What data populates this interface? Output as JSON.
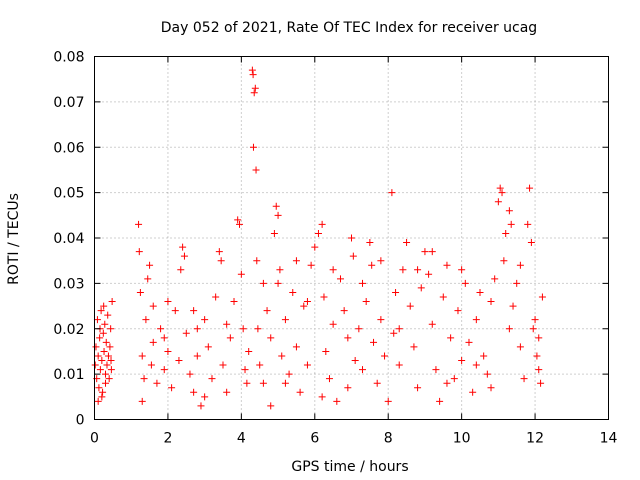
{
  "chart_data": {
    "type": "scatter",
    "title": "Day 052 of 2021, Rate Of TEC Index for receiver ucag",
    "xlabel": "GPS time / hours",
    "ylabel": "ROTI / TECUs",
    "xlim": [
      0,
      14
    ],
    "ylim": [
      0,
      0.08
    ],
    "xticks": [
      0,
      2,
      4,
      6,
      8,
      10,
      12,
      14
    ],
    "xtick_labels": [
      "0",
      "2",
      "4",
      "6",
      "8",
      "10",
      "12",
      "14"
    ],
    "yticks": [
      0,
      0.01,
      0.02,
      0.03,
      0.04,
      0.05,
      0.06,
      0.07,
      0.08
    ],
    "ytick_labels": [
      "0",
      "0.01",
      "0.02",
      "0.03",
      "0.04",
      "0.05",
      "0.06",
      "0.07",
      "0.08"
    ],
    "grid": true,
    "marker": "plus",
    "marker_color": "#ff0000",
    "series": [
      {
        "name": "ROTI",
        "points": [
          [
            0.02,
            0.012
          ],
          [
            0.04,
            0.016
          ],
          [
            0.06,
            0.009
          ],
          [
            0.08,
            0.022
          ],
          [
            0.1,
            0.014
          ],
          [
            0.12,
            0.007
          ],
          [
            0.14,
            0.018
          ],
          [
            0.16,
            0.011
          ],
          [
            0.18,
            0.024
          ],
          [
            0.2,
            0.013
          ],
          [
            0.22,
            0.006
          ],
          [
            0.24,
            0.019
          ],
          [
            0.26,
            0.015
          ],
          [
            0.28,
            0.021
          ],
          [
            0.3,
            0.01
          ],
          [
            0.32,
            0.017
          ],
          [
            0.34,
            0.012
          ],
          [
            0.36,
            0.023
          ],
          [
            0.38,
            0.014
          ],
          [
            0.4,
            0.009
          ],
          [
            0.42,
            0.016
          ],
          [
            0.44,
            0.02
          ],
          [
            0.46,
            0.011
          ],
          [
            0.48,
            0.026
          ],
          [
            0.1,
            0.004
          ],
          [
            0.2,
            0.005
          ],
          [
            0.3,
            0.008
          ],
          [
            0.15,
            0.02
          ],
          [
            0.25,
            0.025
          ],
          [
            0.45,
            0.013
          ],
          [
            1.2,
            0.043
          ],
          [
            1.22,
            0.037
          ],
          [
            1.25,
            0.028
          ],
          [
            1.3,
            0.014
          ],
          [
            1.35,
            0.009
          ],
          [
            1.4,
            0.022
          ],
          [
            1.45,
            0.031
          ],
          [
            1.5,
            0.034
          ],
          [
            1.55,
            0.012
          ],
          [
            1.6,
            0.017
          ],
          [
            1.7,
            0.008
          ],
          [
            1.8,
            0.02
          ],
          [
            1.9,
            0.011
          ],
          [
            2.0,
            0.015
          ],
          [
            2.1,
            0.007
          ],
          [
            2.2,
            0.024
          ],
          [
            2.3,
            0.013
          ],
          [
            2.35,
            0.033
          ],
          [
            2.4,
            0.038
          ],
          [
            2.45,
            0.036
          ],
          [
            2.5,
            0.019
          ],
          [
            2.6,
            0.01
          ],
          [
            2.7,
            0.006
          ],
          [
            2.8,
            0.014
          ],
          [
            2.9,
            0.003
          ],
          [
            3.0,
            0.022
          ],
          [
            3.1,
            0.016
          ],
          [
            3.2,
            0.009
          ],
          [
            3.3,
            0.027
          ],
          [
            3.4,
            0.037
          ],
          [
            3.45,
            0.035
          ],
          [
            3.5,
            0.012
          ],
          [
            3.6,
            0.021
          ],
          [
            3.7,
            0.018
          ],
          [
            3.8,
            0.026
          ],
          [
            3.9,
            0.044
          ],
          [
            3.95,
            0.043
          ],
          [
            4.0,
            0.032
          ],
          [
            4.05,
            0.02
          ],
          [
            4.1,
            0.011
          ],
          [
            4.15,
            0.008
          ],
          [
            4.2,
            0.015
          ],
          [
            1.3,
            0.004
          ],
          [
            1.6,
            0.025
          ],
          [
            2.0,
            0.026
          ],
          [
            2.7,
            0.024
          ],
          [
            3.0,
            0.005
          ],
          [
            3.6,
            0.006
          ],
          [
            1.9,
            0.018
          ],
          [
            2.8,
            0.02
          ],
          [
            4.3,
            0.077
          ],
          [
            4.32,
            0.076
          ],
          [
            4.35,
            0.072
          ],
          [
            4.38,
            0.073
          ],
          [
            4.33,
            0.06
          ],
          [
            4.4,
            0.055
          ],
          [
            4.42,
            0.035
          ],
          [
            4.45,
            0.02
          ],
          [
            4.5,
            0.012
          ],
          [
            4.6,
            0.008
          ],
          [
            4.7,
            0.024
          ],
          [
            4.8,
            0.018
          ],
          [
            4.9,
            0.041
          ],
          [
            4.95,
            0.047
          ],
          [
            5.0,
            0.045
          ],
          [
            5.05,
            0.033
          ],
          [
            5.1,
            0.014
          ],
          [
            5.2,
            0.022
          ],
          [
            5.3,
            0.01
          ],
          [
            5.4,
            0.028
          ],
          [
            5.5,
            0.016
          ],
          [
            5.6,
            0.006
          ],
          [
            5.7,
            0.025
          ],
          [
            5.8,
            0.012
          ],
          [
            5.9,
            0.034
          ],
          [
            6.0,
            0.038
          ],
          [
            6.1,
            0.041
          ],
          [
            6.2,
            0.043
          ],
          [
            6.25,
            0.027
          ],
          [
            6.3,
            0.015
          ],
          [
            6.4,
            0.009
          ],
          [
            6.5,
            0.021
          ],
          [
            6.6,
            0.004
          ],
          [
            6.7,
            0.031
          ],
          [
            6.8,
            0.024
          ],
          [
            6.9,
            0.018
          ],
          [
            7.0,
            0.04
          ],
          [
            7.05,
            0.036
          ],
          [
            7.1,
            0.013
          ],
          [
            7.2,
            0.02
          ],
          [
            7.3,
            0.011
          ],
          [
            7.4,
            0.026
          ],
          [
            7.5,
            0.039
          ],
          [
            7.55,
            0.034
          ],
          [
            7.6,
            0.017
          ],
          [
            7.7,
            0.008
          ],
          [
            7.8,
            0.022
          ],
          [
            7.9,
            0.014
          ],
          [
            8.0,
            0.004
          ],
          [
            8.1,
            0.05
          ],
          [
            8.15,
            0.019
          ],
          [
            8.2,
            0.028
          ],
          [
            8.3,
            0.012
          ],
          [
            8.4,
            0.033
          ],
          [
            8.5,
            0.039
          ],
          [
            8.6,
            0.025
          ],
          [
            8.7,
            0.016
          ],
          [
            8.8,
            0.007
          ],
          [
            8.9,
            0.029
          ],
          [
            9.0,
            0.037
          ],
          [
            9.1,
            0.032
          ],
          [
            9.2,
            0.021
          ],
          [
            9.3,
            0.011
          ],
          [
            9.4,
            0.004
          ],
          [
            9.5,
            0.027
          ],
          [
            9.6,
            0.034
          ],
          [
            9.7,
            0.018
          ],
          [
            9.8,
            0.009
          ],
          [
            9.9,
            0.024
          ],
          [
            10.0,
            0.013
          ],
          [
            10.1,
            0.03
          ],
          [
            10.2,
            0.017
          ],
          [
            10.3,
            0.006
          ],
          [
            10.4,
            0.022
          ],
          [
            10.5,
            0.028
          ],
          [
            10.6,
            0.014
          ],
          [
            10.7,
            0.01
          ],
          [
            10.8,
            0.026
          ],
          [
            10.9,
            0.031
          ],
          [
            11.0,
            0.048
          ],
          [
            11.05,
            0.051
          ],
          [
            11.1,
            0.05
          ],
          [
            11.15,
            0.035
          ],
          [
            11.2,
            0.041
          ],
          [
            11.3,
            0.046
          ],
          [
            11.35,
            0.043
          ],
          [
            11.4,
            0.025
          ],
          [
            11.5,
            0.03
          ],
          [
            11.6,
            0.016
          ],
          [
            11.7,
            0.009
          ],
          [
            11.8,
            0.043
          ],
          [
            11.85,
            0.051
          ],
          [
            11.9,
            0.039
          ],
          [
            12.0,
            0.022
          ],
          [
            12.05,
            0.014
          ],
          [
            12.1,
            0.018
          ],
          [
            12.15,
            0.008
          ],
          [
            12.2,
            0.027
          ],
          [
            12.1,
            0.011
          ],
          [
            11.95,
            0.02
          ],
          [
            5.0,
            0.03
          ],
          [
            5.2,
            0.008
          ],
          [
            5.5,
            0.035
          ],
          [
            5.8,
            0.026
          ],
          [
            6.5,
            0.033
          ],
          [
            6.9,
            0.007
          ],
          [
            7.3,
            0.03
          ],
          [
            7.8,
            0.035
          ],
          [
            8.3,
            0.02
          ],
          [
            8.8,
            0.033
          ],
          [
            9.2,
            0.037
          ],
          [
            9.6,
            0.008
          ],
          [
            10.0,
            0.033
          ],
          [
            10.4,
            0.012
          ],
          [
            10.8,
            0.007
          ],
          [
            11.3,
            0.02
          ],
          [
            11.6,
            0.034
          ],
          [
            4.6,
            0.03
          ],
          [
            4.8,
            0.003
          ],
          [
            6.2,
            0.005
          ]
        ]
      }
    ]
  }
}
